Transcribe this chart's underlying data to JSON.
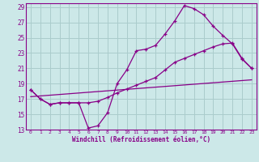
{
  "bg_color": "#cce8e8",
  "grid_color": "#aacccc",
  "line_color": "#880088",
  "xlabel": "Windchill (Refroidissement éolien,°C)",
  "xlim": [
    -0.5,
    23.5
  ],
  "ylim": [
    13,
    29.5
  ],
  "xticks": [
    0,
    1,
    2,
    3,
    4,
    5,
    6,
    7,
    8,
    9,
    10,
    11,
    12,
    13,
    14,
    15,
    16,
    17,
    18,
    19,
    20,
    21,
    22,
    23
  ],
  "yticks": [
    13,
    15,
    17,
    19,
    21,
    23,
    25,
    27,
    29
  ],
  "curve1_x": [
    0,
    1,
    2,
    3,
    4,
    5,
    6,
    7,
    8,
    9,
    10,
    11,
    12,
    13,
    14,
    15,
    16,
    17,
    18,
    19,
    20,
    21,
    22,
    23
  ],
  "curve1_y": [
    18.2,
    17.0,
    16.3,
    16.5,
    16.5,
    16.5,
    13.2,
    13.5,
    15.2,
    19.0,
    20.8,
    23.3,
    23.5,
    24.0,
    25.5,
    27.2,
    29.2,
    28.8,
    28.0,
    26.5,
    25.3,
    24.2,
    22.2,
    21.0
  ],
  "curve2_x": [
    0,
    1,
    2,
    3,
    4,
    5,
    6,
    7,
    8,
    9,
    10,
    11,
    12,
    13,
    14,
    15,
    16,
    17,
    18,
    19,
    20,
    21,
    22,
    23
  ],
  "curve2_y": [
    18.2,
    17.0,
    16.3,
    16.5,
    16.5,
    16.5,
    16.5,
    16.7,
    17.2,
    17.8,
    18.3,
    18.8,
    19.3,
    19.8,
    20.8,
    21.8,
    22.3,
    22.8,
    23.3,
    23.8,
    24.2,
    24.3,
    22.3,
    21.0
  ],
  "curve3_x": [
    0,
    23
  ],
  "curve3_y": [
    17.3,
    19.5
  ]
}
